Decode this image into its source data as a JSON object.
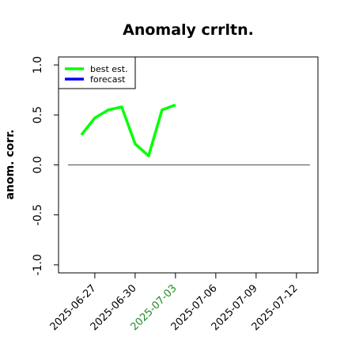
{
  "chart_data": {
    "type": "line",
    "title": "Anomaly crrltn.",
    "ylabel": "anom. corr.",
    "x": [
      "2025-06-26",
      "2025-06-27",
      "2025-06-28",
      "2025-06-29",
      "2025-06-30",
      "2025-07-01",
      "2025-07-02",
      "2025-07-03"
    ],
    "series": [
      {
        "name": "best est.",
        "color": "#00ff00",
        "values": [
          0.3,
          0.47,
          0.55,
          0.58,
          0.21,
          0.09,
          0.55,
          0.6
        ]
      },
      {
        "name": "forecast",
        "color": "#0000ff",
        "values": [
          null,
          null,
          null,
          null,
          null,
          null,
          null,
          null
        ]
      }
    ],
    "xlim": [
      "2025-06-24T07:12:00Z",
      "2025-07-13T14:24:00Z"
    ],
    "xticks": [
      "2025-06-27",
      "2025-06-30",
      "2025-07-03",
      "2025-07-06",
      "2025-07-09",
      "2025-07-12"
    ],
    "highlight_xtick": {
      "value": "2025-07-03",
      "color": "#228b22"
    },
    "ylim": [
      -1.08,
      1.08
    ],
    "yticks": [
      {
        "value": -1,
        "label": "-1.0"
      },
      -0.5,
      {
        "value": 0,
        "label": "0.0"
      },
      0.5,
      {
        "value": 1,
        "label": "1.0"
      }
    ],
    "reference_line": {
      "y": 0,
      "x": [
        "2025-06-25",
        "2025-07-13"
      ],
      "color": "#666666"
    },
    "legend": "upper left"
  }
}
